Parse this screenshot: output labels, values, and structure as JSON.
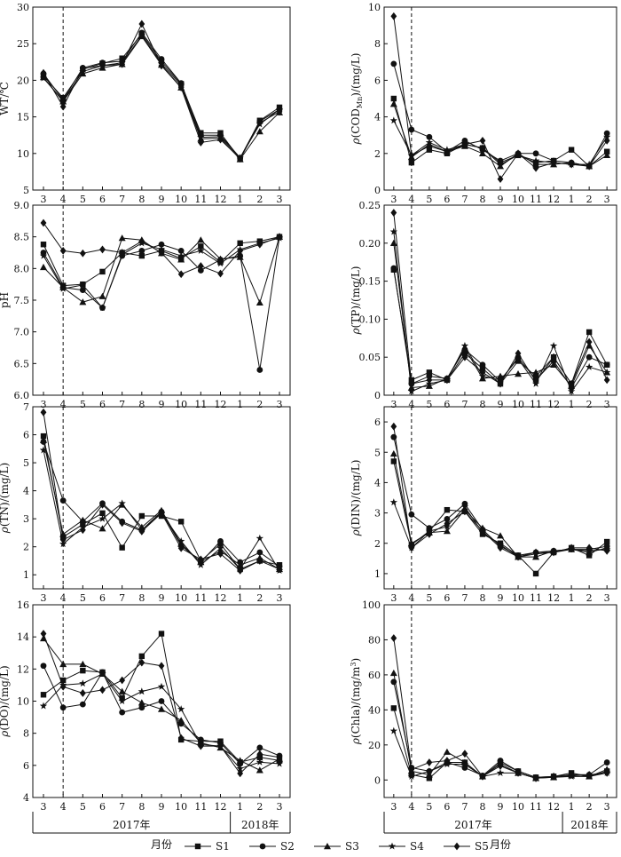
{
  "figure": {
    "x_tick_labels": [
      "3",
      "4",
      "5",
      "6",
      "7",
      "8",
      "9",
      "10",
      "11",
      "12",
      "1",
      "2",
      "3"
    ],
    "year_labels": [
      "2017年",
      "2018年"
    ],
    "month_label": "月份",
    "legend": [
      {
        "name": "S1",
        "marker": "square"
      },
      {
        "name": "S2",
        "marker": "circle"
      },
      {
        "name": "S3",
        "marker": "triangle"
      },
      {
        "name": "S4",
        "marker": "star"
      },
      {
        "name": "S5",
        "marker": "diamond"
      }
    ]
  },
  "chart_data": [
    {
      "type": "line",
      "ylabel": "WT/℃",
      "ylim": [
        5,
        30
      ],
      "yticks": [
        "5",
        "10",
        "15",
        "20",
        "25",
        "30"
      ],
      "series": [
        {
          "name": "S1",
          "values": [
            20.6,
            17.6,
            21.5,
            22.3,
            23.0,
            26.3,
            22.6,
            19.5,
            12.8,
            12.8,
            9.2,
            14.5,
            16.3
          ]
        },
        {
          "name": "S2",
          "values": [
            20.9,
            17.3,
            21.7,
            22.4,
            22.6,
            26.5,
            22.9,
            19.6,
            12.5,
            12.5,
            9.4,
            14.4,
            16.0
          ]
        },
        {
          "name": "S3",
          "values": [
            20.4,
            17.1,
            20.9,
            21.7,
            22.2,
            26.0,
            22.1,
            19.0,
            12.0,
            12.1,
            9.2,
            13.0,
            15.6
          ]
        },
        {
          "name": "S4",
          "values": [
            20.3,
            17.2,
            21.2,
            22.0,
            22.4,
            26.1,
            22.3,
            19.3,
            12.2,
            12.3,
            9.4,
            14.0,
            16.0
          ]
        },
        {
          "name": "S5",
          "values": [
            21.0,
            16.4,
            21.6,
            22.0,
            22.2,
            27.7,
            22.0,
            19.0,
            11.5,
            11.9,
            9.3,
            14.2,
            15.7
          ]
        }
      ]
    },
    {
      "type": "line",
      "ylabel": "ρ(CODMn)/(mg/L)",
      "ylim": [
        0,
        10
      ],
      "yticks": [
        "0",
        "2",
        "4",
        "6",
        "8",
        "10"
      ],
      "series": [
        {
          "name": "S1",
          "values": [
            5.0,
            1.5,
            2.2,
            2.0,
            2.5,
            2.3,
            1.5,
            1.9,
            1.5,
            1.6,
            2.2,
            1.3,
            2.1
          ]
        },
        {
          "name": "S2",
          "values": [
            6.9,
            3.3,
            2.9,
            2.1,
            2.7,
            2.2,
            1.6,
            2.0,
            2.0,
            1.6,
            1.5,
            1.3,
            3.1
          ]
        },
        {
          "name": "S3",
          "values": [
            4.7,
            1.8,
            2.5,
            2.1,
            2.4,
            2.0,
            1.3,
            2.0,
            1.4,
            1.4,
            1.5,
            1.3,
            1.9
          ]
        },
        {
          "name": "S4",
          "values": [
            3.8,
            1.9,
            2.6,
            2.2,
            2.5,
            2.3,
            1.4,
            1.9,
            1.6,
            1.5,
            1.4,
            1.4,
            2.9
          ]
        },
        {
          "name": "S5",
          "values": [
            9.5,
            1.9,
            2.4,
            2.1,
            2.5,
            2.7,
            0.6,
            2.0,
            1.2,
            1.5,
            1.4,
            1.3,
            2.7
          ]
        }
      ]
    },
    {
      "type": "line",
      "ylabel": "pH",
      "ylim": [
        6.0,
        9.0
      ],
      "yticks": [
        "6.0",
        "6.5",
        "7.0",
        "7.5",
        "8.0",
        "8.5",
        "9.0"
      ],
      "series": [
        {
          "name": "S1",
          "values": [
            8.38,
            7.73,
            7.75,
            7.95,
            8.25,
            8.2,
            8.28,
            8.16,
            8.35,
            8.1,
            8.4,
            8.43,
            8.5
          ]
        },
        {
          "name": "S2",
          "values": [
            8.25,
            7.7,
            7.66,
            7.38,
            8.2,
            8.28,
            8.38,
            8.28,
            7.97,
            8.14,
            8.2,
            6.4,
            8.5
          ]
        },
        {
          "name": "S3",
          "values": [
            8.02,
            7.7,
            7.47,
            7.56,
            8.48,
            8.45,
            8.24,
            8.14,
            8.45,
            8.15,
            8.18,
            7.46,
            8.5
          ]
        },
        {
          "name": "S4",
          "values": [
            8.2,
            7.68,
            7.74,
            7.38,
            8.22,
            8.4,
            8.3,
            8.2,
            8.28,
            8.08,
            8.3,
            8.4,
            8.48
          ]
        },
        {
          "name": "S5",
          "values": [
            8.72,
            8.28,
            8.24,
            8.3,
            8.25,
            8.43,
            8.25,
            7.91,
            8.04,
            7.92,
            8.28,
            8.38,
            8.5
          ]
        }
      ]
    },
    {
      "type": "line",
      "ylabel": "ρ(TP)/(mg/L)",
      "ylim": [
        0,
        0.25
      ],
      "yticks": [
        "0",
        "0.05",
        "0.10",
        "0.15",
        "0.20",
        "0.25"
      ],
      "series": [
        {
          "name": "S1",
          "values": [
            0.165,
            0.02,
            0.03,
            0.02,
            0.055,
            0.035,
            0.015,
            0.045,
            0.025,
            0.05,
            0.015,
            0.083,
            0.04
          ]
        },
        {
          "name": "S2",
          "values": [
            0.167,
            0.015,
            0.025,
            0.022,
            0.06,
            0.04,
            0.018,
            0.05,
            0.02,
            0.045,
            0.01,
            0.05,
            0.04
          ]
        },
        {
          "name": "S3",
          "values": [
            0.2,
            0.01,
            0.012,
            0.022,
            0.062,
            0.022,
            0.025,
            0.028,
            0.03,
            0.04,
            0.012,
            0.065,
            0.03
          ]
        },
        {
          "name": "S4",
          "values": [
            0.215,
            0.005,
            0.015,
            0.02,
            0.065,
            0.025,
            0.02,
            0.048,
            0.015,
            0.065,
            0.005,
            0.037,
            0.03
          ]
        },
        {
          "name": "S5",
          "values": [
            0.24,
            0.015,
            0.02,
            0.02,
            0.05,
            0.03,
            0.015,
            0.055,
            0.018,
            0.05,
            0.015,
            0.07,
            0.02
          ]
        }
      ]
    },
    {
      "type": "line",
      "ylabel": "ρ(TN)/(mg/L)",
      "ylim": [
        0.5,
        7
      ],
      "yticks": [
        "1",
        "2",
        "3",
        "4",
        "5",
        "6",
        "7"
      ],
      "series": [
        {
          "name": "S1",
          "values": [
            5.95,
            2.35,
            2.8,
            3.2,
            1.97,
            3.1,
            3.1,
            2.9,
            1.5,
            2.1,
            1.2,
            1.5,
            1.35
          ]
        },
        {
          "name": "S2",
          "values": [
            5.75,
            3.65,
            2.9,
            3.55,
            2.9,
            2.6,
            3.25,
            2.05,
            1.45,
            2.2,
            1.45,
            1.8,
            1.3
          ]
        },
        {
          "name": "S3",
          "values": [
            5.8,
            2.45,
            2.95,
            2.65,
            3.5,
            2.7,
            3.3,
            2.1,
            1.45,
            1.85,
            1.35,
            1.6,
            1.2
          ]
        },
        {
          "name": "S4",
          "values": [
            5.45,
            2.1,
            2.7,
            3.0,
            3.55,
            2.6,
            3.2,
            2.2,
            1.35,
            1.95,
            1.2,
            2.3,
            1.15
          ]
        },
        {
          "name": "S5",
          "values": [
            6.8,
            2.25,
            2.6,
            3.5,
            2.85,
            2.55,
            3.2,
            1.95,
            1.55,
            1.75,
            1.15,
            1.5,
            1.2
          ]
        }
      ]
    },
    {
      "type": "line",
      "ylabel": "ρ(DIN)/(mg/L)",
      "ylim": [
        0.5,
        6.5
      ],
      "yticks": [
        "1",
        "2",
        "3",
        "4",
        "5",
        "6"
      ],
      "series": [
        {
          "name": "S1",
          "values": [
            4.7,
            1.95,
            2.4,
            3.1,
            3.05,
            2.3,
            2.0,
            1.6,
            1.0,
            1.7,
            1.85,
            1.6,
            2.05
          ]
        },
        {
          "name": "S2",
          "values": [
            5.5,
            2.95,
            2.5,
            2.8,
            3.3,
            2.45,
            1.9,
            1.6,
            1.7,
            1.75,
            1.8,
            1.8,
            1.9
          ]
        },
        {
          "name": "S3",
          "values": [
            4.95,
            2.0,
            2.35,
            2.4,
            3.1,
            2.5,
            2.25,
            1.55,
            1.55,
            1.75,
            1.8,
            1.7,
            1.85
          ]
        },
        {
          "name": "S4",
          "values": [
            3.35,
            1.85,
            2.4,
            2.55,
            3.2,
            2.35,
            1.95,
            1.55,
            1.65,
            1.7,
            1.8,
            1.75,
            1.8
          ]
        },
        {
          "name": "S5",
          "values": [
            5.85,
            1.85,
            2.3,
            2.65,
            3.05,
            2.4,
            1.85,
            1.55,
            1.7,
            1.7,
            1.85,
            1.85,
            1.75
          ]
        }
      ]
    },
    {
      "type": "line",
      "ylabel": "ρ(DO)/(mg/L)",
      "ylim": [
        4,
        16
      ],
      "yticks": [
        "4",
        "6",
        "8",
        "10",
        "12",
        "14",
        "16"
      ],
      "series": [
        {
          "name": "S1",
          "values": [
            10.4,
            11.3,
            11.9,
            11.8,
            10.2,
            12.8,
            14.2,
            7.6,
            7.5,
            7.5,
            6.2,
            6.5,
            6.3
          ]
        },
        {
          "name": "S2",
          "values": [
            12.2,
            9.6,
            9.8,
            11.8,
            9.3,
            9.6,
            10.0,
            8.6,
            7.6,
            7.4,
            6.1,
            7.1,
            6.6
          ]
        },
        {
          "name": "S3",
          "values": [
            13.9,
            12.3,
            12.3,
            11.7,
            10.6,
            9.9,
            9.5,
            8.8,
            7.4,
            7.1,
            6.3,
            5.7,
            6.4
          ]
        },
        {
          "name": "S4",
          "values": [
            9.7,
            11.0,
            11.1,
            11.7,
            10.0,
            10.6,
            10.9,
            9.5,
            7.3,
            7.2,
            5.8,
            6.2,
            6.1
          ]
        },
        {
          "name": "S5",
          "values": [
            14.2,
            10.9,
            10.5,
            10.7,
            11.3,
            12.4,
            12.2,
            7.7,
            7.2,
            7.2,
            5.5,
            6.7,
            6.5
          ]
        }
      ]
    },
    {
      "type": "line",
      "ylabel": "ρ(Chla)/(mg/m3)",
      "ylim": [
        -10,
        100
      ],
      "yticks": [
        "0",
        "20",
        "40",
        "60",
        "80",
        "100"
      ],
      "series": [
        {
          "name": "S1",
          "values": [
            41.0,
            3.0,
            1.0,
            10.0,
            10.0,
            2.0,
            10.0,
            5.0,
            1.5,
            2.0,
            4.0,
            2.0,
            5.0
          ]
        },
        {
          "name": "S2",
          "values": [
            56.0,
            7.0,
            5.0,
            10.0,
            7.0,
            2.5,
            11.0,
            5.0,
            1.5,
            2.0,
            3.0,
            3.0,
            10.0
          ]
        },
        {
          "name": "S3",
          "values": [
            61.0,
            5.0,
            3.0,
            16.0,
            10.0,
            2.0,
            9.0,
            4.0,
            1.0,
            1.5,
            2.5,
            2.0,
            6.0
          ]
        },
        {
          "name": "S4",
          "values": [
            28.0,
            2.0,
            5.0,
            9.0,
            9.0,
            2.0,
            4.0,
            4.0,
            1.0,
            1.5,
            2.0,
            2.0,
            4.0
          ]
        },
        {
          "name": "S5",
          "values": [
            81.0,
            6.0,
            10.0,
            11.0,
            15.0,
            2.0,
            8.0,
            4.0,
            1.0,
            2.0,
            3.0,
            3.0,
            4.0
          ]
        }
      ]
    }
  ]
}
